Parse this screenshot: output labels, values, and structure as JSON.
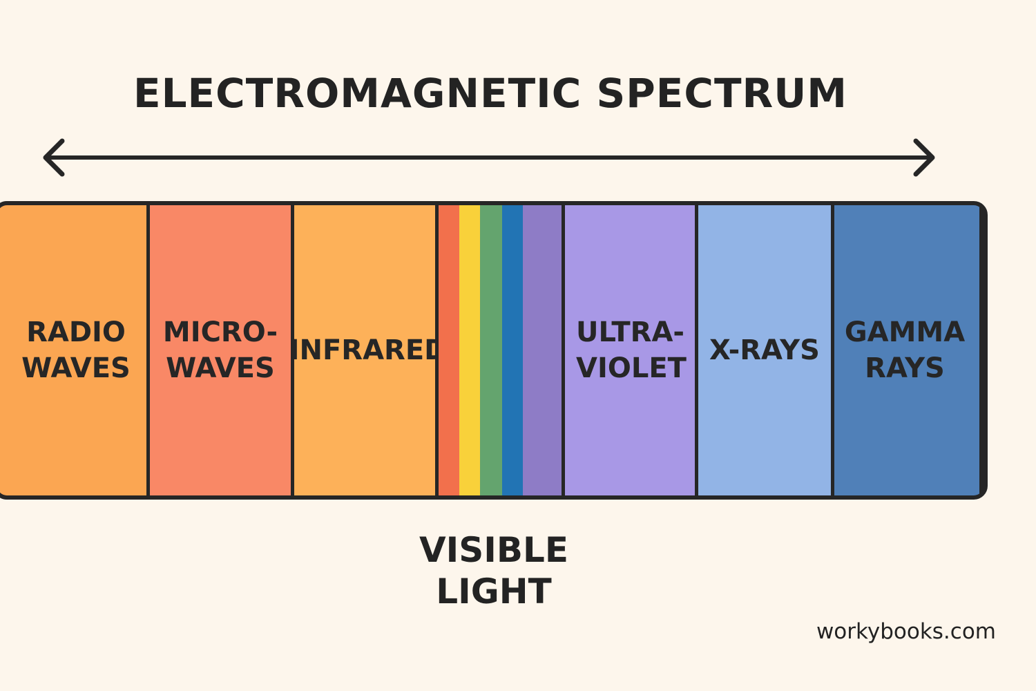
{
  "title": "ELECTROMAGNETIC SPECTRUM",
  "bands": [
    {
      "line1": "RADIO",
      "line2": "WAVES",
      "color": "#fba652"
    },
    {
      "line1": "MICRO-",
      "line2": "WAVES",
      "color": "#f98866"
    },
    {
      "line1": "INFRARED",
      "line2": "",
      "color": "#fdb159"
    },
    {
      "line1": "ULTRA-",
      "line2": "VIOLET",
      "color": "#a898e6"
    },
    {
      "line1": "X-RAYS",
      "line2": "",
      "color": "#92b4e6"
    },
    {
      "line1": "GAMMA",
      "line2": "RAYS",
      "color": "#5080b8"
    }
  ],
  "visible_stripes": [
    "#f2704c",
    "#f9d13a",
    "#64a46e",
    "#2274b4",
    "#8e7cc6"
  ],
  "visible_label": {
    "line1": "VISIBLE",
    "line2": "LIGHT"
  },
  "watermark": "workybooks.com",
  "colors": {
    "background": "#fdf6ec",
    "outline": "#262626"
  }
}
